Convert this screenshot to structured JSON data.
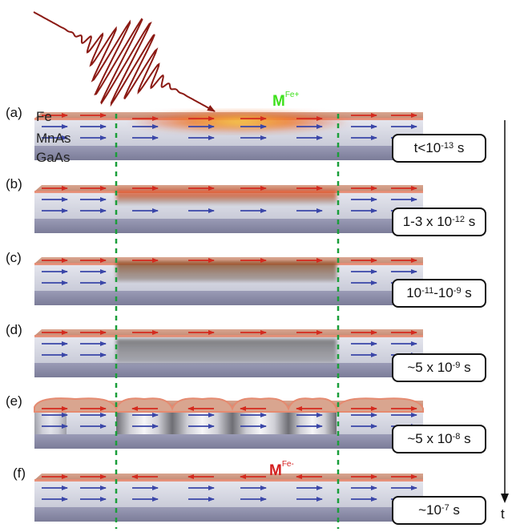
{
  "layers": {
    "fe": "Fe",
    "mnas": "MnAs",
    "gaas": "GaAs"
  },
  "panels": [
    {
      "label": "(a)",
      "time_base": "t<10",
      "time_exp": "-13",
      "time_unit": "s"
    },
    {
      "label": "(b)",
      "time_base": "1-3 x 10",
      "time_exp": "-12",
      "time_unit": "s"
    },
    {
      "label": "(c)",
      "time_base": "10",
      "time_exp": "-11",
      "time_mid": "-10",
      "time_exp2": "-9",
      "time_unit": "s"
    },
    {
      "label": "(d)",
      "time_base": "~5 x 10",
      "time_exp": "-9",
      "time_unit": "s"
    },
    {
      "label": "(e)",
      "time_base": "~5 x 10",
      "time_exp": "-8",
      "time_unit": "s"
    },
    {
      "label": "(f)",
      "time_base": "~10",
      "time_exp": "-7",
      "time_unit": "s"
    }
  ],
  "magnetization": {
    "plus": {
      "base": "M",
      "sup": "Fe+"
    },
    "minus": {
      "base": "M",
      "sup": "Fe-"
    }
  },
  "time_axis_label": "t",
  "colors": {
    "fe_arrow": "#d42a1e",
    "mnas_arrow": "#3a46a8",
    "fe_layer": "#e8a48a",
    "mnas_layer": "#d9dbe6",
    "gaas_layer": "#8e8fa8",
    "laser_pulse": "#8b1a14",
    "dashed_line": "#1a9e3a",
    "m_plus": "#3ee01c",
    "m_minus": "#d41e1e"
  }
}
